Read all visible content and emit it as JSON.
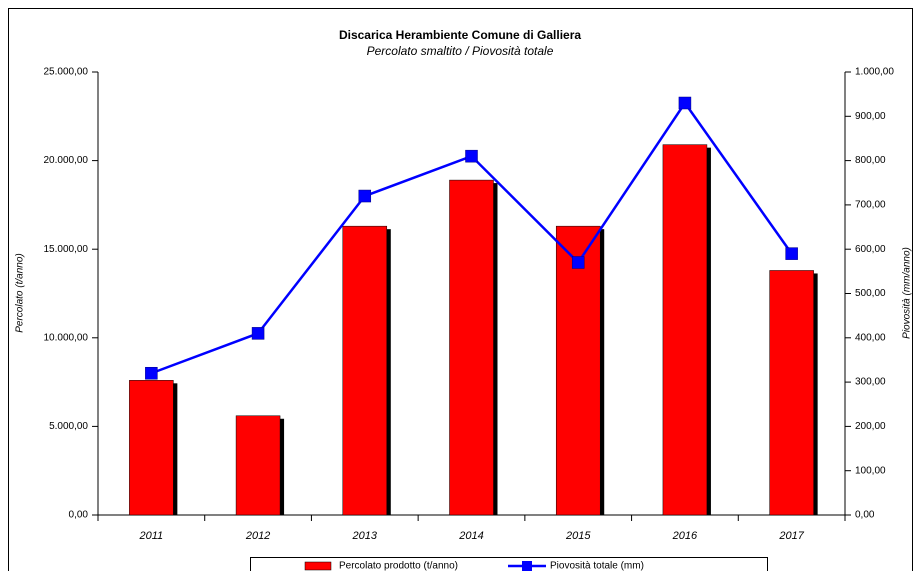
{
  "chart_data": {
    "type": "bar",
    "title": "Discarica Herambiente Comune di Galliera",
    "subtitle": "Percolato smaltito / Piovosità totale",
    "y_label": "Percolato (t/anno)",
    "y2_label": "Piovosità (mm/anno)",
    "categories": [
      "2011",
      "2012",
      "2013",
      "2014",
      "2015",
      "2016",
      "2017"
    ],
    "series": [
      {
        "name": "Percolato prodotto (t/anno)",
        "color": "#ff0000",
        "values": [
          7600,
          5600,
          16300,
          18900,
          16300,
          20900,
          13800
        ]
      },
      {
        "name": "Piovosità totale (mm)",
        "color": "#0000ff",
        "type": "line",
        "axis": "y2",
        "values": [
          320,
          410,
          720,
          810,
          570,
          930,
          590
        ]
      }
    ],
    "ylim": [
      0,
      25000
    ],
    "yticks": [
      {
        "value": 0,
        "label": "0,00"
      },
      {
        "value": 5000,
        "label": "5.000,00"
      },
      {
        "value": 10000,
        "label": "10.000,00"
      },
      {
        "value": 15000,
        "label": "15.000,00"
      },
      {
        "value": 20000,
        "label": "20.000,00"
      },
      {
        "value": 25000,
        "label": "25.000,00"
      }
    ],
    "y2lim": [
      0,
      1000
    ],
    "y2ticks": [
      {
        "value": 0,
        "label": "0,00"
      },
      {
        "value": 100,
        "label": "100,00"
      },
      {
        "value": 200,
        "label": "200,00"
      },
      {
        "value": 300,
        "label": "300,00"
      },
      {
        "value": 400,
        "label": "400,00"
      },
      {
        "value": 500,
        "label": "500,00"
      },
      {
        "value": 600,
        "label": "600,00"
      },
      {
        "value": 700,
        "label": "700,00"
      },
      {
        "value": 800,
        "label": "800,00"
      },
      {
        "value": 900,
        "label": "900,00"
      },
      {
        "value": 1000,
        "label": "1.000,00"
      }
    ],
    "grid": false,
    "legend": "bottom"
  }
}
